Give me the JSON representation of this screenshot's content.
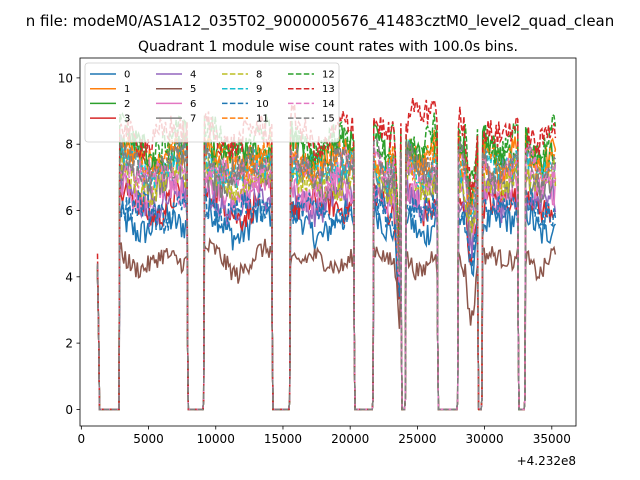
{
  "chart_data": {
    "type": "line",
    "suptitle": "n file: modeM0/AS1A12_035T02_9000005676_41483cztM0_level2_quad_clean",
    "title": "Quadrant 1 module wise count rates with 100.0s bins.",
    "xlabel": "",
    "ylabel": "",
    "x_offset_label": "+4.232e8",
    "xlim": [
      -100,
      36800
    ],
    "ylim": [
      -0.5,
      10.6
    ],
    "xticks": [
      0,
      5000,
      10000,
      15000,
      20000,
      25000,
      30000,
      35000
    ],
    "xtick_labels": [
      "0",
      "5000",
      "10000",
      "15000",
      "20000",
      "25000",
      "30000",
      "35000"
    ],
    "yticks": [
      0,
      2,
      4,
      6,
      8,
      10
    ],
    "ytick_labels": [
      "0",
      "2",
      "4",
      "6",
      "8",
      "10"
    ],
    "legend_position": "upper-left",
    "legend_columns": 4,
    "gaps": [
      [
        1300,
        2800
      ],
      [
        7900,
        9100
      ],
      [
        14200,
        15500
      ],
      [
        20300,
        21700
      ],
      [
        23800,
        24100
      ],
      [
        26500,
        28000
      ],
      [
        29500,
        29800
      ],
      [
        32500,
        33000
      ]
    ],
    "segments": [
      [
        1200,
        1300
      ],
      [
        2800,
        7900
      ],
      [
        9100,
        14200
      ],
      [
        15500,
        20300
      ],
      [
        21700,
        23800
      ],
      [
        24100,
        26500
      ],
      [
        28000,
        29500
      ],
      [
        29800,
        32500
      ],
      [
        33000,
        35300
      ]
    ],
    "series": [
      {
        "name": "0",
        "color": "#1f77b4",
        "dash": "solid",
        "mean_level": 5.6
      },
      {
        "name": "1",
        "color": "#ff7f0e",
        "dash": "solid",
        "mean_level": 7.5
      },
      {
        "name": "2",
        "color": "#2ca02c",
        "dash": "solid",
        "mean_level": 7.8
      },
      {
        "name": "3",
        "color": "#d62728",
        "dash": "solid",
        "mean_level": 6.2
      },
      {
        "name": "4",
        "color": "#9467bd",
        "dash": "solid",
        "mean_level": 6.3
      },
      {
        "name": "5",
        "color": "#8c564b",
        "dash": "solid",
        "mean_level": 4.5
      },
      {
        "name": "6",
        "color": "#e377c2",
        "dash": "solid",
        "mean_level": 6.6
      },
      {
        "name": "7",
        "color": "#7f7f7f",
        "dash": "solid",
        "mean_level": 7.0
      },
      {
        "name": "8",
        "color": "#bcbd22",
        "dash": "dashed",
        "mean_level": 6.9
      },
      {
        "name": "9",
        "color": "#17becf",
        "dash": "dashed",
        "mean_level": 7.3
      },
      {
        "name": "10",
        "color": "#1f77b4",
        "dash": "dashed",
        "mean_level": 6.0
      },
      {
        "name": "11",
        "color": "#ff7f0e",
        "dash": "dashed",
        "mean_level": 7.6
      },
      {
        "name": "12",
        "color": "#2ca02c",
        "dash": "dashed",
        "mean_level": 8.1
      },
      {
        "name": "13",
        "color": "#d62728",
        "dash": "dashed",
        "mean_level": 8.3
      },
      {
        "name": "14",
        "color": "#e377c2",
        "dash": "dashed",
        "mean_level": 7.2
      },
      {
        "name": "15",
        "color": "#7f7f7f",
        "dash": "dashed",
        "mean_level": 7.4
      }
    ]
  }
}
